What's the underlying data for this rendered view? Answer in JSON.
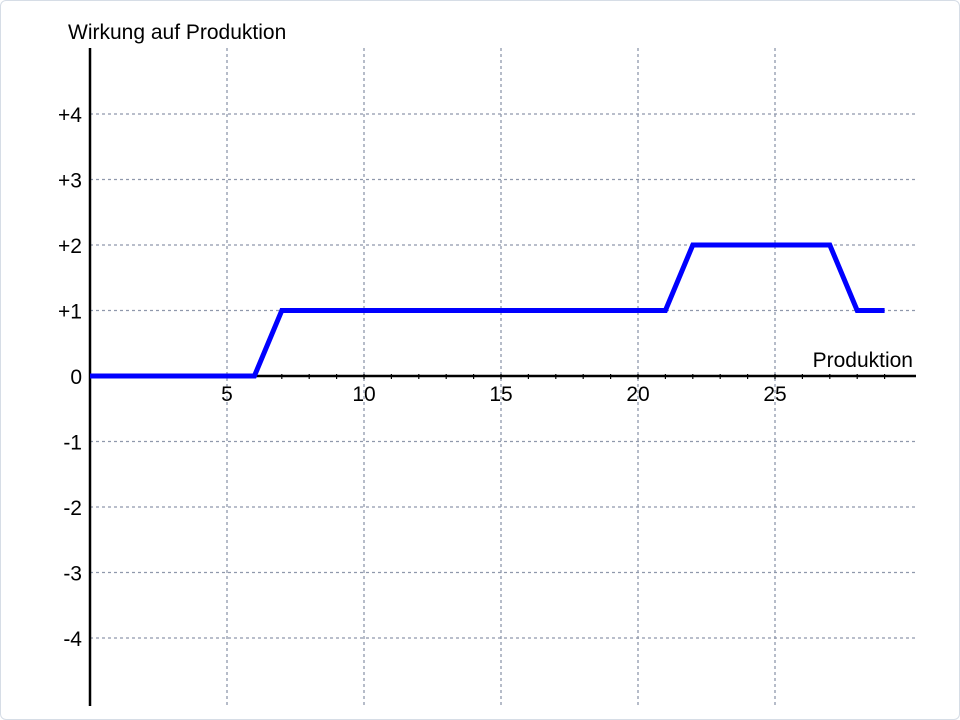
{
  "chart_data": {
    "type": "line",
    "title": "",
    "xlabel": "Produktion",
    "ylabel": "Wirkung auf Produktion",
    "xlim": [
      0,
      30
    ],
    "ylim": [
      -5,
      5
    ],
    "grid": true,
    "x_ticks": [
      5,
      10,
      15,
      20,
      25
    ],
    "x_tick_labels": [
      "5",
      "10",
      "15",
      "20",
      "25"
    ],
    "y_ticks": [
      4,
      3,
      2,
      1,
      0,
      -1,
      -2,
      -3,
      -4
    ],
    "y_tick_labels": [
      "+4",
      "+3",
      "+2",
      "+1",
      "0",
      "-1",
      "-2",
      "-3",
      "-4"
    ],
    "series": [
      {
        "color": "#0000ff",
        "x": [
          0,
          6,
          7,
          21,
          22,
          27,
          28,
          29
        ],
        "y": [
          0,
          0,
          1,
          1,
          2,
          2,
          1,
          1
        ]
      }
    ]
  }
}
